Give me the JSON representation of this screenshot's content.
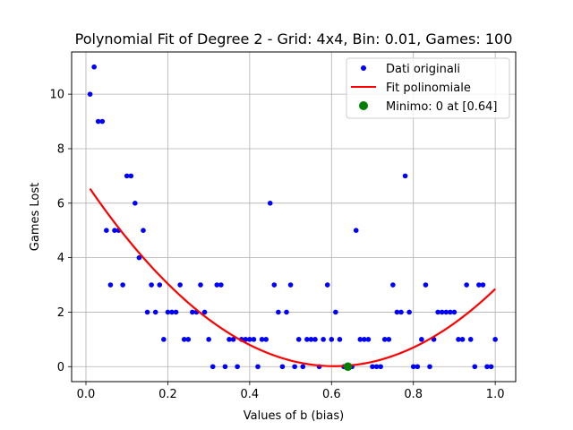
{
  "chart_data": {
    "type": "scatter",
    "title": "Polynomial Fit of Degree 2 - Grid: 4x4, Bin: 0.01, Games: 100",
    "xlabel": "Values of b (bias)",
    "ylabel": "Games Lost",
    "xlim": [
      -0.035,
      1.05
    ],
    "ylim": [
      -0.55,
      11.55
    ],
    "xticks": [
      0.0,
      0.2,
      0.4,
      0.6,
      0.8,
      1.0
    ],
    "xtick_labels": [
      "0.0",
      "0.2",
      "0.4",
      "0.6",
      "0.8",
      "1.0"
    ],
    "yticks": [
      0,
      2,
      4,
      6,
      8,
      10
    ],
    "ytick_labels": [
      "0",
      "2",
      "4",
      "6",
      "8",
      "10"
    ],
    "grid": true,
    "legend_position": "top-right",
    "series": [
      {
        "name": "Dati originali",
        "kind": "scatter",
        "color": "#0000ff",
        "points": [
          [
            0.01,
            10
          ],
          [
            0.02,
            11
          ],
          [
            0.03,
            9
          ],
          [
            0.04,
            9
          ],
          [
            0.05,
            5
          ],
          [
            0.06,
            3
          ],
          [
            0.07,
            5
          ],
          [
            0.08,
            5
          ],
          [
            0.09,
            3
          ],
          [
            0.1,
            7
          ],
          [
            0.11,
            7
          ],
          [
            0.12,
            6
          ],
          [
            0.13,
            4
          ],
          [
            0.14,
            5
          ],
          [
            0.15,
            2
          ],
          [
            0.16,
            3
          ],
          [
            0.17,
            2
          ],
          [
            0.18,
            3
          ],
          [
            0.19,
            1
          ],
          [
            0.2,
            2
          ],
          [
            0.21,
            2
          ],
          [
            0.22,
            2
          ],
          [
            0.23,
            3
          ],
          [
            0.24,
            1
          ],
          [
            0.25,
            1
          ],
          [
            0.26,
            2
          ],
          [
            0.27,
            2
          ],
          [
            0.28,
            3
          ],
          [
            0.29,
            2
          ],
          [
            0.3,
            1
          ],
          [
            0.31,
            0
          ],
          [
            0.32,
            3
          ],
          [
            0.33,
            3
          ],
          [
            0.34,
            0
          ],
          [
            0.35,
            1
          ],
          [
            0.36,
            1
          ],
          [
            0.37,
            0
          ],
          [
            0.38,
            1
          ],
          [
            0.39,
            1
          ],
          [
            0.4,
            1
          ],
          [
            0.41,
            1
          ],
          [
            0.42,
            0
          ],
          [
            0.43,
            1
          ],
          [
            0.44,
            1
          ],
          [
            0.45,
            6
          ],
          [
            0.46,
            3
          ],
          [
            0.47,
            2
          ],
          [
            0.48,
            0
          ],
          [
            0.49,
            2
          ],
          [
            0.5,
            3
          ],
          [
            0.51,
            0
          ],
          [
            0.52,
            1
          ],
          [
            0.53,
            0
          ],
          [
            0.54,
            1
          ],
          [
            0.55,
            1
          ],
          [
            0.56,
            1
          ],
          [
            0.57,
            0
          ],
          [
            0.58,
            1
          ],
          [
            0.59,
            3
          ],
          [
            0.6,
            1
          ],
          [
            0.61,
            2
          ],
          [
            0.62,
            1
          ],
          [
            0.63,
            0
          ],
          [
            0.64,
            0
          ],
          [
            0.65,
            0
          ],
          [
            0.66,
            5
          ],
          [
            0.67,
            1
          ],
          [
            0.68,
            1
          ],
          [
            0.69,
            1
          ],
          [
            0.7,
            0
          ],
          [
            0.71,
            0
          ],
          [
            0.72,
            0
          ],
          [
            0.73,
            1
          ],
          [
            0.74,
            1
          ],
          [
            0.75,
            3
          ],
          [
            0.76,
            2
          ],
          [
            0.77,
            2
          ],
          [
            0.78,
            7
          ],
          [
            0.79,
            2
          ],
          [
            0.8,
            0
          ],
          [
            0.81,
            0
          ],
          [
            0.82,
            1
          ],
          [
            0.83,
            3
          ],
          [
            0.84,
            0
          ],
          [
            0.85,
            1
          ],
          [
            0.86,
            2
          ],
          [
            0.87,
            2
          ],
          [
            0.88,
            2
          ],
          [
            0.89,
            2
          ],
          [
            0.9,
            2
          ],
          [
            0.91,
            1
          ],
          [
            0.92,
            1
          ],
          [
            0.93,
            3
          ],
          [
            0.94,
            1
          ],
          [
            0.95,
            0
          ],
          [
            0.96,
            3
          ],
          [
            0.97,
            3
          ],
          [
            0.98,
            0
          ],
          [
            0.99,
            0
          ],
          [
            1.0,
            1
          ]
        ]
      },
      {
        "name": "Fit polinomiale",
        "kind": "line",
        "color": "#ff0000",
        "polynomial": {
          "a": 18.3,
          "b": -22.2,
          "c": 6.75
        },
        "x_range": [
          0.01,
          1.0
        ]
      },
      {
        "name": "Minimo: 0 at [0.64]",
        "kind": "scatter",
        "color": "#008000",
        "points": [
          [
            0.64,
            0
          ]
        ]
      }
    ]
  }
}
